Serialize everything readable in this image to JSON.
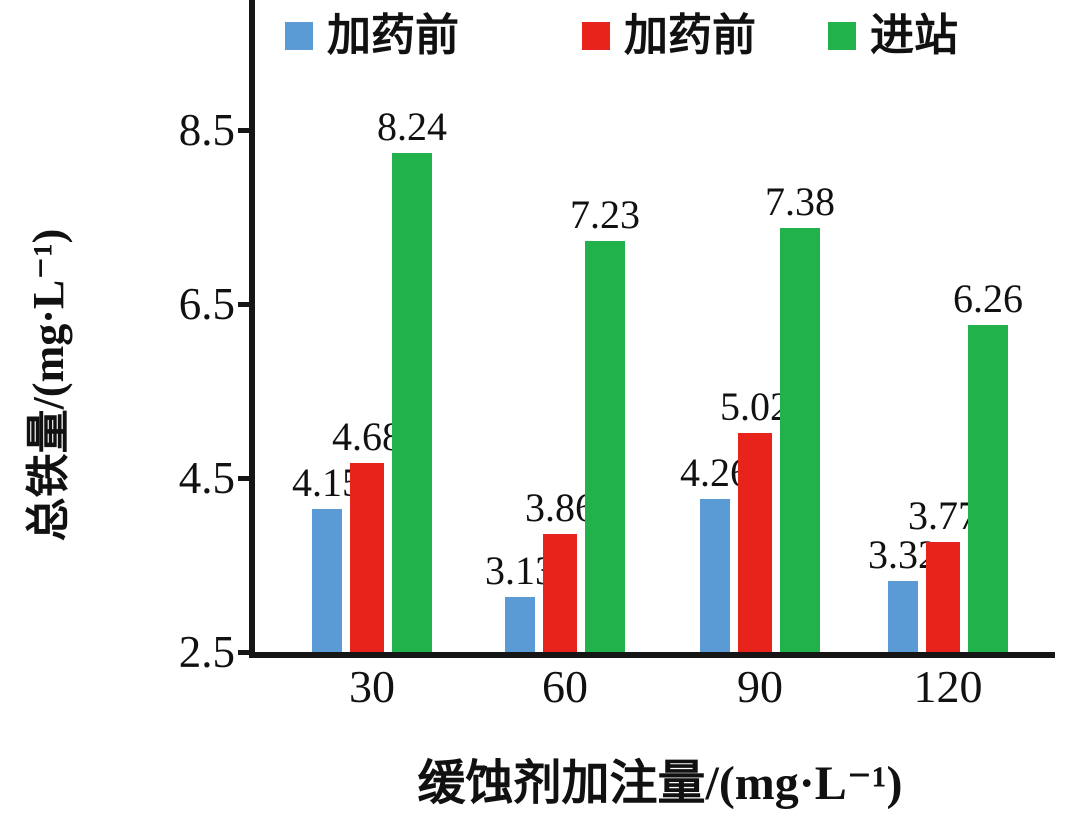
{
  "chart_data": {
    "type": "bar",
    "title": "",
    "categories": [
      "30",
      "60",
      "90",
      "120"
    ],
    "series": [
      {
        "name": "加药前",
        "color": "#5B9BD5",
        "values": [
          4.15,
          3.13,
          4.26,
          3.32
        ]
      },
      {
        "name": "加药前",
        "color": "#E8231C",
        "values": [
          4.68,
          3.86,
          5.02,
          3.77
        ]
      },
      {
        "name": "进站",
        "color": "#21B24B",
        "values": [
          8.24,
          7.23,
          7.38,
          6.26
        ]
      }
    ],
    "xlabel": "缓蚀剂加注量/(mg·L⁻¹)",
    "ylabel": "总铁量/(mg·L⁻¹)",
    "ylim": [
      2.5,
      10.0
    ],
    "yticks": [
      2.5,
      4.5,
      6.5,
      8.5
    ],
    "grid": false,
    "legend_position": "top",
    "value_labels": true,
    "value_label_decimals": 2
  }
}
